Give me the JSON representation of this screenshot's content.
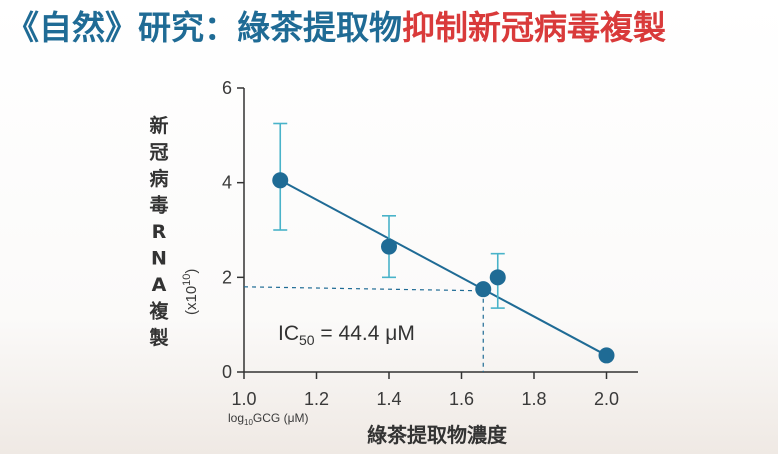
{
  "title": {
    "part1": "《自然》研究：綠茶提取物",
    "part2": "抑制新冠病毒複製"
  },
  "colors": {
    "title_blue": "#1f6b95",
    "title_red": "#d93a3a",
    "series": "#1f6b95",
    "error_bar": "#49b3c9",
    "axis": "#333333"
  },
  "chart_data": {
    "type": "scatter",
    "ylabel": "新冠病毒RNA複製",
    "ylabel_chars": [
      "新",
      "冠",
      "病",
      "毒",
      "R",
      "N",
      "A",
      "複",
      "製"
    ],
    "yunit": "(x10",
    "yunit_exp": "10",
    "yunit_close": ")",
    "xlabel": "綠茶提取物濃度",
    "xsub_prefix": "log",
    "xsub_sub": "10",
    "xsub_rest": "GCG (μM)",
    "xlim": [
      1.0,
      2.1
    ],
    "ylim": [
      0,
      6
    ],
    "xticks": [
      "1.0",
      "1.2",
      "1.4",
      "1.6",
      "1.8",
      "2.0"
    ],
    "yticks": [
      "0",
      "2",
      "4",
      "6"
    ],
    "points": [
      {
        "x": 1.1,
        "y": 4.05,
        "err_low": 3.0,
        "err_high": 5.25
      },
      {
        "x": 1.4,
        "y": 2.65,
        "err_low": 2.0,
        "err_high": 3.3
      },
      {
        "x": 1.66,
        "y": 1.75
      },
      {
        "x": 1.7,
        "y": 2.0,
        "err_low": 1.35,
        "err_high": 2.5
      },
      {
        "x": 2.0,
        "y": 0.35
      }
    ],
    "fit_line": [
      {
        "x": 1.1,
        "y": 4.05
      },
      {
        "x": 2.0,
        "y": 0.35
      }
    ],
    "ic50": {
      "x": 1.66,
      "y": 1.8
    },
    "annotation": {
      "prefix": "IC",
      "sub": "50",
      "rest": " = 44.4 μM"
    },
    "grid": false
  }
}
